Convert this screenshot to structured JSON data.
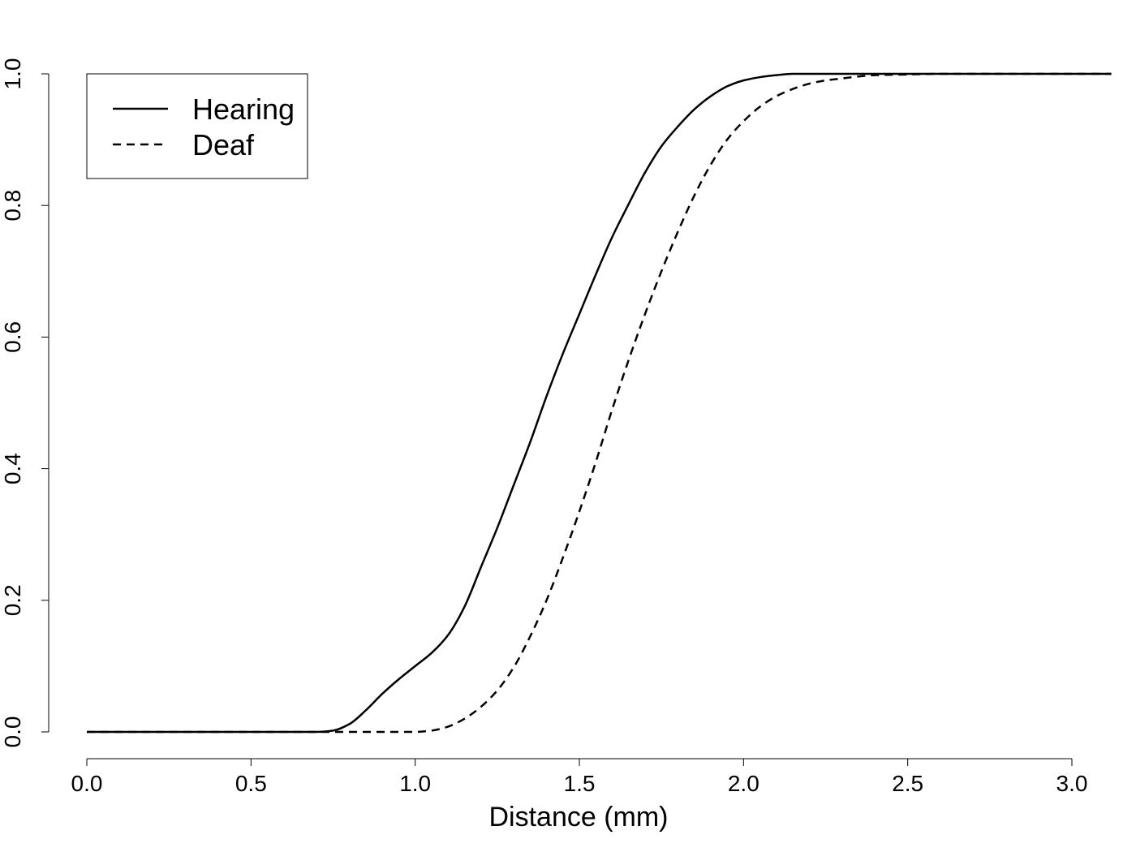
{
  "chart_data": {
    "type": "line",
    "title": "",
    "xlabel": "Distance (mm)",
    "ylabel": "",
    "xlim": [
      0,
      3.0
    ],
    "ylim": [
      0,
      1.0
    ],
    "x_ticks": [
      "0.0",
      "0.5",
      "1.0",
      "1.5",
      "2.0",
      "2.5",
      "3.0"
    ],
    "y_ticks": [
      "0.0",
      "0.2",
      "0.4",
      "0.6",
      "0.8",
      "1.0"
    ],
    "grid": false,
    "legend_position": "top-left",
    "series": [
      {
        "name": "Hearing",
        "line_style": "solid",
        "color": "#000000",
        "x": [
          0.0,
          0.5,
          0.7,
          0.75,
          0.8,
          0.85,
          0.9,
          0.95,
          1.0,
          1.05,
          1.1,
          1.15,
          1.2,
          1.25,
          1.3,
          1.35,
          1.4,
          1.45,
          1.5,
          1.55,
          1.6,
          1.65,
          1.7,
          1.75,
          1.8,
          1.85,
          1.9,
          1.95,
          2.0,
          2.05,
          2.1,
          2.15,
          2.2,
          2.3,
          2.4,
          2.6,
          3.0,
          3.12
        ],
        "y": [
          0.0,
          0.0,
          0.0,
          0.002,
          0.012,
          0.033,
          0.058,
          0.08,
          0.1,
          0.12,
          0.147,
          0.19,
          0.25,
          0.31,
          0.375,
          0.44,
          0.51,
          0.575,
          0.635,
          0.695,
          0.752,
          0.802,
          0.85,
          0.89,
          0.92,
          0.946,
          0.966,
          0.981,
          0.99,
          0.995,
          0.998,
          1.0,
          1.0,
          1.0,
          1.0,
          1.0,
          1.0,
          1.0
        ]
      },
      {
        "name": "Deaf",
        "line_style": "dashed",
        "color": "#000000",
        "x": [
          0.0,
          0.5,
          1.0,
          1.05,
          1.1,
          1.15,
          1.2,
          1.25,
          1.3,
          1.35,
          1.4,
          1.45,
          1.5,
          1.55,
          1.6,
          1.65,
          1.7,
          1.75,
          1.8,
          1.85,
          1.9,
          1.95,
          2.0,
          2.05,
          2.1,
          2.15,
          2.2,
          2.25,
          2.3,
          2.35,
          2.4,
          2.5,
          2.6,
          2.7,
          3.0,
          3.12
        ],
        "y": [
          0.0,
          0.0,
          0.0,
          0.002,
          0.008,
          0.02,
          0.038,
          0.063,
          0.098,
          0.145,
          0.2,
          0.265,
          0.335,
          0.41,
          0.49,
          0.565,
          0.635,
          0.7,
          0.76,
          0.815,
          0.862,
          0.9,
          0.928,
          0.95,
          0.966,
          0.977,
          0.985,
          0.99,
          0.993,
          0.996,
          0.998,
          0.999,
          1.0,
          1.0,
          1.0,
          1.0
        ]
      }
    ]
  }
}
